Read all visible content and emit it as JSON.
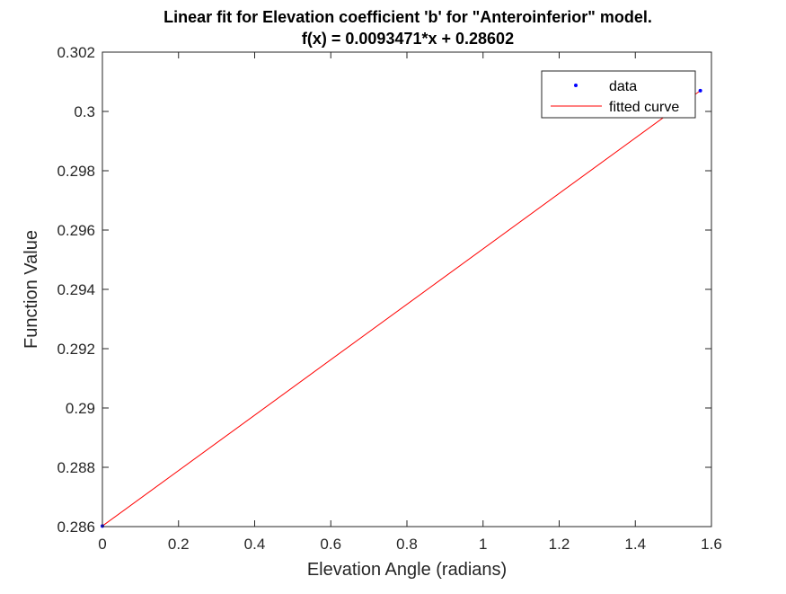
{
  "chart_data": {
    "type": "line",
    "title": "Linear fit for Elevation coefficient 'b' for \"Anteroinferior\" model.",
    "subtitle": "f(x) = 0.0093471*x + 0.28602",
    "xlabel": "Elevation Angle (radians)",
    "ylabel": "Function Value",
    "xlim": [
      0,
      1.6
    ],
    "ylim": [
      0.286,
      0.302
    ],
    "xticks": [
      0,
      0.2,
      0.4,
      0.6,
      0.8,
      1,
      1.2,
      1.4,
      1.6
    ],
    "xtick_labels": [
      "0",
      "0.2",
      "0.4",
      "0.6",
      "0.8",
      "1",
      "1.2",
      "1.4",
      "1.6"
    ],
    "yticks": [
      0.286,
      0.288,
      0.29,
      0.292,
      0.294,
      0.296,
      0.298,
      0.3,
      0.302
    ],
    "ytick_labels": [
      "0.286",
      "0.288",
      "0.29",
      "0.292",
      "0.294",
      "0.296",
      "0.298",
      "0.3",
      "0.302"
    ],
    "grid": false,
    "legend_position": "top-right",
    "series": [
      {
        "name": "data",
        "kind": "points",
        "color": "#0000ff",
        "x": [
          0,
          1.5708
        ],
        "y": [
          0.28602,
          0.3007
        ]
      },
      {
        "name": "fitted curve",
        "kind": "line",
        "color": "#ff0000",
        "x": [
          0,
          1.5708
        ],
        "y": [
          0.28602,
          0.3007
        ]
      }
    ]
  }
}
